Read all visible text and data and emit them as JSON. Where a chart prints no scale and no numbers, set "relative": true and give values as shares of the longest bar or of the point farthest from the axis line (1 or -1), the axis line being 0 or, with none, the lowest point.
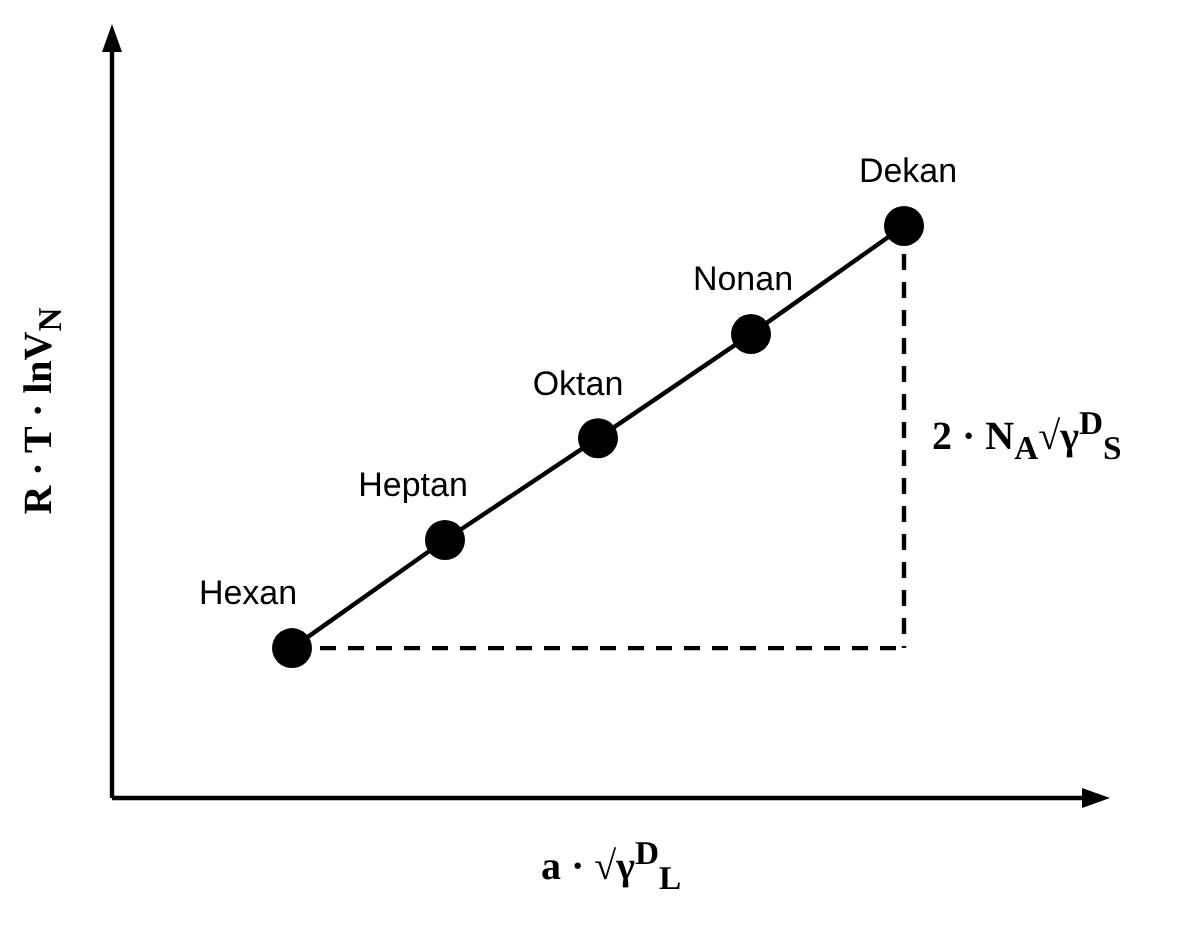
{
  "chart_data": {
    "type": "line",
    "relative": true,
    "xlabel": "a · √γ$^{D}$$_{L}$",
    "ylabel": "R · T · lnV$_{N}$",
    "marker": "circle",
    "categories": [
      null,
      null,
      null,
      null,
      null
    ],
    "series": [
      {
        "color": "#000000",
        "line_style": "solid",
        "values": [
          0.262,
          0.451,
          0.629,
          0.811,
          1
        ]
      },
      {
        "color": "#000000",
        "line_style": "dashed",
        "marker": "none",
        "values": [
          0.262,
          null,
          null,
          null,
          0.262
        ]
      }
    ],
    "annotations": [
      "Hexan",
      "Heptan",
      "Oktan",
      "Nonan",
      "Dekan",
      "2 · N$_{A}$√γ$^{D}$$_{S}$"
    ]
  }
}
